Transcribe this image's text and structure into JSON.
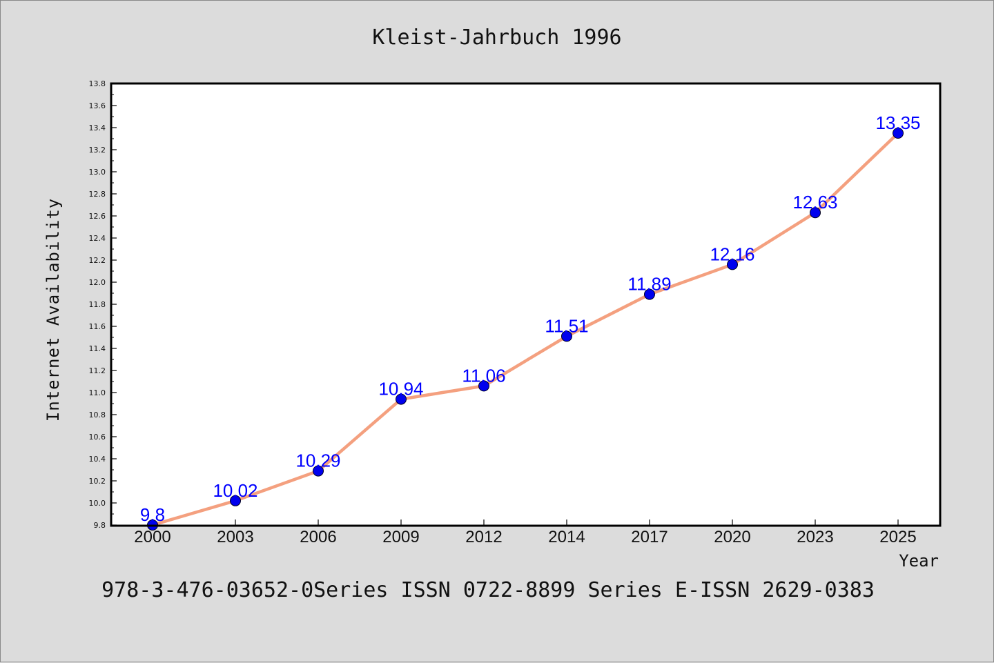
{
  "chart_data": {
    "type": "line",
    "title": "Kleist-Jahrbuch 1996",
    "xlabel": "Year",
    "ylabel": "Internet Availability",
    "categories": [
      "2000",
      "2003",
      "2006",
      "2009",
      "2012",
      "2014",
      "2017",
      "2020",
      "2023",
      "2025"
    ],
    "values": [
      9.8,
      10.02,
      10.29,
      10.94,
      11.06,
      11.51,
      11.89,
      12.16,
      12.63,
      13.35
    ],
    "value_labels": [
      "9.8",
      "10.02",
      "10.29",
      "10.94",
      "11.06",
      "11.51",
      "11.89",
      "12.16",
      "12.63",
      "13.35"
    ],
    "ylim": [
      9.8,
      13.8
    ],
    "yticks": [
      "9.8",
      "10.0",
      "10.2",
      "10.4",
      "10.6",
      "10.8",
      "11.0",
      "11.2",
      "11.4",
      "11.6",
      "11.8",
      "12.0",
      "12.2",
      "12.4",
      "12.6",
      "12.8",
      "13.0",
      "13.2",
      "13.4",
      "13.6",
      "13.8"
    ],
    "grid": false,
    "legend": "none",
    "line_color": "#f4a07f",
    "marker_color": "#0000ee",
    "label_color": "#0000ff"
  },
  "footer": "978-3-476-03652-0Series ISSN 0722-8899 Series E-ISSN 2629-0383"
}
